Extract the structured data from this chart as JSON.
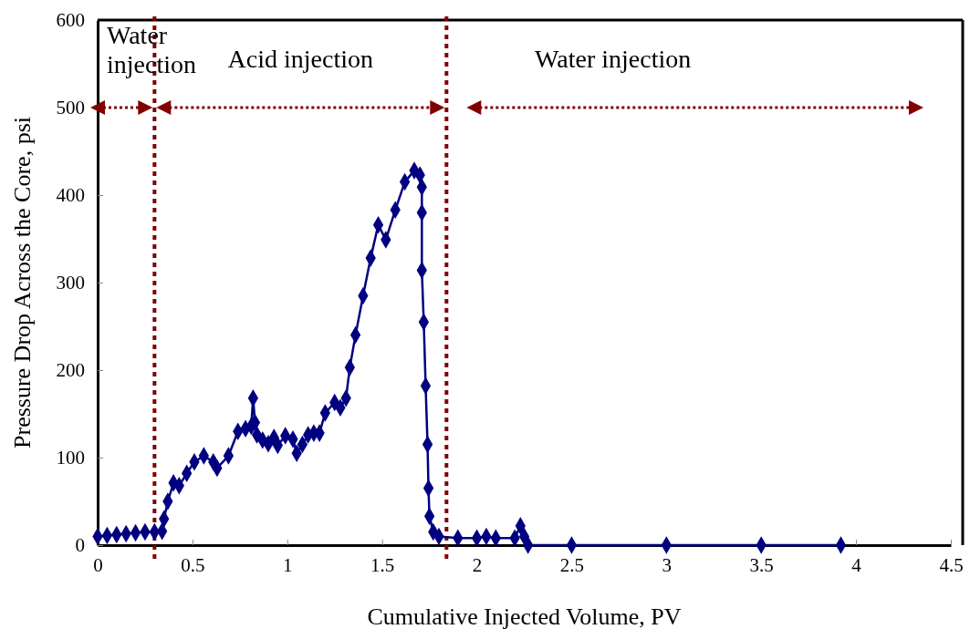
{
  "chart_data": {
    "type": "line",
    "xlabel": "Cumulative Injected Volume, PV",
    "ylabel": "Pressure Drop Across the Core, psi",
    "xlim": [
      0,
      4.5
    ],
    "ylim": [
      0,
      600
    ],
    "xticks": [
      0,
      0.5,
      1,
      1.5,
      2,
      2.5,
      3,
      3.5,
      4,
      4.5
    ],
    "yticks": [
      0,
      100,
      200,
      300,
      400,
      500,
      600
    ],
    "grid": false,
    "marker": "diamond",
    "line_style": "solid",
    "series": [
      {
        "color": "#000080",
        "x": [
          0,
          0.05,
          0.1,
          0.15,
          0.2,
          0.25,
          0.3,
          0.34,
          0.35,
          0.37,
          0.4,
          0.43,
          0.47,
          0.51,
          0.56,
          0.61,
          0.63,
          0.69,
          0.74,
          0.78,
          0.81,
          0.82,
          0.83,
          0.84,
          0.87,
          0.9,
          0.93,
          0.95,
          0.99,
          1.03,
          1.05,
          1.08,
          1.11,
          1.14,
          1.17,
          1.2,
          1.25,
          1.28,
          1.31,
          1.33,
          1.36,
          1.4,
          1.44,
          1.48,
          1.52,
          1.57,
          1.62,
          1.67,
          1.7,
          1.71,
          1.71,
          1.71,
          1.72,
          1.73,
          1.74,
          1.745,
          1.75,
          1.77,
          1.8,
          1.9,
          2.0,
          2.05,
          2.1,
          2.2,
          2.23,
          2.25,
          2.27,
          2.5,
          3.0,
          3.5,
          3.92
        ],
        "values": [
          10,
          11,
          12,
          13,
          14,
          15,
          15,
          16,
          30,
          50,
          71,
          68,
          82,
          95,
          102,
          95,
          88,
          102,
          130,
          133,
          136,
          168,
          140,
          126,
          120,
          116,
          123,
          114,
          125,
          121,
          105,
          115,
          126,
          128,
          128,
          151,
          163,
          157,
          168,
          203,
          240,
          285,
          328,
          366,
          349,
          383,
          415,
          428,
          423,
          409,
          380,
          314,
          255,
          182,
          115,
          65,
          33,
          15,
          10,
          8,
          8,
          10,
          8,
          8,
          22,
          10,
          0,
          0,
          0,
          0,
          0
        ]
      }
    ],
    "ref_lines": [
      {
        "axis": "x",
        "value": 0.3,
        "color": "#800000",
        "line_style": "dotted"
      },
      {
        "axis": "x",
        "value": 1.84,
        "color": "#800000",
        "line_style": "dotted"
      }
    ],
    "annotations": [
      "Water injection",
      "Acid injection",
      "Water injection"
    ]
  }
}
